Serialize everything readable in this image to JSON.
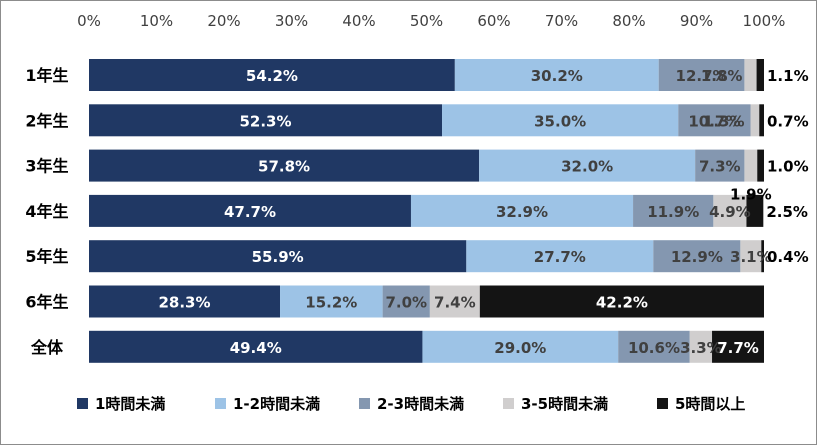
{
  "chart_data": {
    "type": "bar",
    "orientation": "horizontal",
    "stacked": "percent",
    "categories": [
      "1年生",
      "2年生",
      "3年生",
      "4年生",
      "5年生",
      "6年生",
      "全体"
    ],
    "x_ticks": [
      "0%",
      "10%",
      "20%",
      "30%",
      "40%",
      "50%",
      "60%",
      "70%",
      "80%",
      "90%",
      "100%"
    ],
    "xlim": [
      0,
      100
    ],
    "legend_position": "bottom",
    "grid": false,
    "series": [
      {
        "name": "1時間未満",
        "color": "#203864",
        "label_color": "#ffffff",
        "values": [
          54.2,
          52.3,
          57.8,
          47.7,
          55.9,
          28.3,
          49.4
        ],
        "labels": [
          "54.2%",
          "52.3%",
          "57.8%",
          "47.7%",
          "55.9%",
          "28.3%",
          "49.4%"
        ]
      },
      {
        "name": "1-2時間未満",
        "color": "#9dc3e6",
        "label_color": "#404040",
        "values": [
          30.2,
          35.0,
          32.0,
          32.9,
          27.7,
          15.2,
          29.0
        ],
        "labels": [
          "30.2%",
          "35.0%",
          "32.0%",
          "32.9%",
          "27.7%",
          "15.2%",
          "29.0%"
        ]
      },
      {
        "name": "2-3時間未満",
        "color": "#8497b0",
        "label_color": "#404040",
        "values": [
          12.7,
          10.7,
          7.3,
          11.9,
          12.9,
          7.0,
          10.6
        ],
        "labels": [
          "12.7%",
          "10.7%",
          "7.3%",
          "11.9%",
          "12.9%",
          "7.0%",
          "10.6%"
        ]
      },
      {
        "name": "3-5時間未満",
        "color": "#d0cece",
        "label_color": "#404040",
        "values": [
          1.8,
          1.3,
          1.9,
          4.9,
          3.1,
          7.4,
          3.3
        ],
        "labels": [
          "1.8%",
          "1.3%",
          "1.9%",
          "4.9%",
          "3.1%",
          "7.4%",
          "3.3%"
        ]
      },
      {
        "name": "5時間以上",
        "color": "#141414",
        "label_color": "#ffffff",
        "values": [
          1.1,
          0.7,
          1.0,
          2.5,
          0.4,
          42.2,
          7.7
        ],
        "labels": [
          "1.1%",
          "0.7%",
          "1.0%",
          "2.5%",
          "0.4%",
          "42.2%",
          "7.7%"
        ]
      }
    ]
  }
}
